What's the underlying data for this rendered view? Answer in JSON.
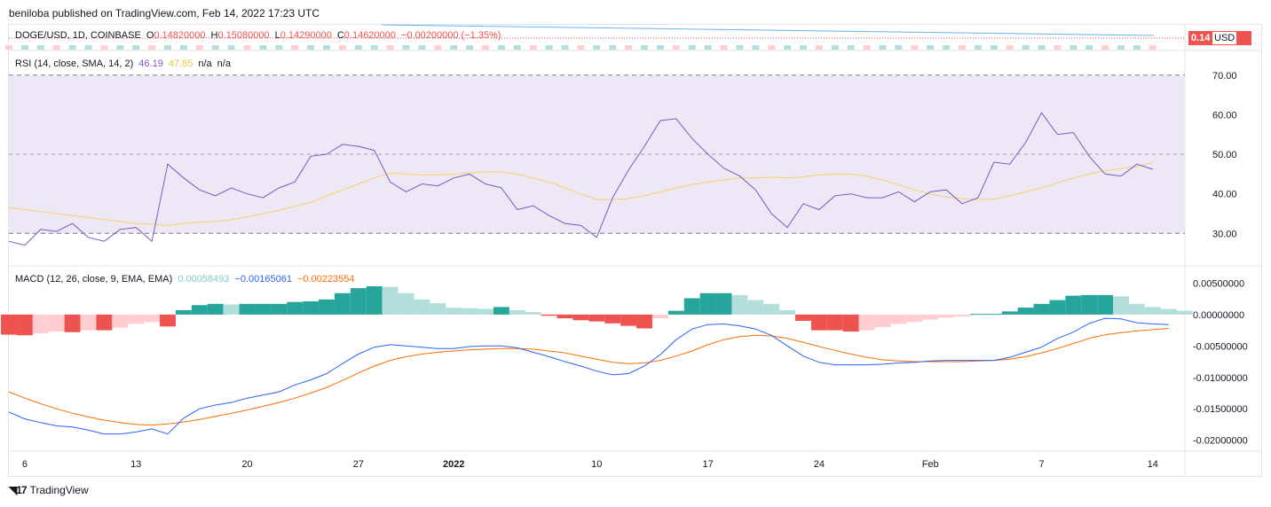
{
  "header": {
    "published_text": "beniloba published on TradingView.com, Feb 14, 2022 17:23 UTC"
  },
  "footer": {
    "brand": "TradingView",
    "logo": "tradingview-logo-icon"
  },
  "main_pane": {
    "symbol": "DOGE/USD, 1D, COINBASE",
    "open_label": "O",
    "open": "0.14820000",
    "high_label": "H",
    "high": "0.15080000",
    "low_label": "L",
    "low": "0.14290000",
    "close_label": "C",
    "close": "0.14620000",
    "change": "−0.00200000 (−1.35%)",
    "last_price_badge": "0.14",
    "currency": "USD"
  },
  "rsi_pane": {
    "title": "RSI (14, close, SMA, 14, 2)",
    "rsi_value": "46.19",
    "sma_value": "47.85",
    "na1": "n/a",
    "na2": "n/a"
  },
  "macd_pane": {
    "title": "MACD (12, 26, close, 9, EMA, EMA)",
    "hist_value": "0.00058493",
    "macd_value": "−0.00165061",
    "signal_value": "−0.00223554"
  },
  "colors": {
    "up": "#26a69a",
    "down": "#ef5350",
    "up_light": "#b2dfdb",
    "down_light": "#ffcdd2",
    "rsi_line": "#7e57c2",
    "rsi_sma": "#f5d36a",
    "rsi_band": "#ede7f6",
    "macd_line": "#2962ff",
    "signal_line": "#ff6d00",
    "trendline": "#64b5f6"
  },
  "chart_data": [
    {
      "type": "line",
      "title": "RSI (14, close, SMA, 14, 2)",
      "x_tick_labels": [
        "6",
        "13",
        "20",
        "27",
        "2022",
        "10",
        "17",
        "24",
        "Feb",
        "7",
        "14"
      ],
      "y_ticks": [
        "30.00",
        "40.00",
        "50.00",
        "60.00",
        "70.00"
      ],
      "ylim": [
        22,
        76
      ],
      "band": [
        30,
        70
      ],
      "midline": 50,
      "series": [
        {
          "name": "RSI",
          "values": [
            28,
            27,
            31,
            30.5,
            32.5,
            29,
            28,
            31,
            31.5,
            28,
            47.5,
            44,
            41,
            39.5,
            41.5,
            40,
            39,
            41.5,
            43,
            49.5,
            50,
            52.5,
            52,
            51,
            43,
            40.5,
            42.5,
            42,
            44,
            45,
            42.5,
            41.5,
            36,
            37,
            34.5,
            32.5,
            32,
            29,
            39,
            46,
            52,
            58.5,
            59,
            54,
            50,
            46.5,
            44.5,
            41,
            35,
            31.5,
            37.5,
            36,
            39.5,
            40,
            39,
            39,
            40.5,
            38,
            40.5,
            41,
            37.5,
            39,
            48,
            47.5,
            53,
            60.5,
            55,
            55.5,
            49.5,
            45,
            44.5,
            47.5,
            46.2
          ]
        },
        {
          "name": "RSI-based MA",
          "values": [
            36.5,
            36,
            35.5,
            35,
            34.5,
            34,
            33.5,
            33,
            32.5,
            32.3,
            32,
            32.5,
            32.8,
            33,
            33.5,
            34.2,
            35,
            35.8,
            36.8,
            37.8,
            39.5,
            41,
            42.5,
            44,
            45.2,
            45,
            44.8,
            44.8,
            45,
            45.3,
            45.6,
            45.5,
            45,
            44,
            43,
            41.5,
            40,
            38.6,
            38.5,
            38.8,
            39.5,
            40.5,
            41.5,
            42.3,
            43,
            43.5,
            44,
            44,
            44.2,
            44,
            44.3,
            44.8,
            45,
            45,
            44.5,
            43.5,
            42.3,
            41,
            40,
            39.2,
            38.8,
            38.5,
            38.7,
            39.5,
            40.5,
            41.5,
            42.8,
            44,
            45,
            45.8,
            46.4,
            46.9,
            47.85
          ]
        }
      ]
    },
    {
      "type": "bar",
      "title": "MACD (12, 26, close, 9, EMA, EMA)",
      "x_tick_labels": [
        "6",
        "13",
        "20",
        "27",
        "2022",
        "10",
        "17",
        "24",
        "Feb",
        "7",
        "14"
      ],
      "y_ticks": [
        "0.00500000",
        "0.00000000",
        "-0.00500000",
        "-0.01000000",
        "-0.01500000",
        "-0.02000000"
      ],
      "ylim": [
        -0.0216,
        0.0076
      ],
      "series": [
        {
          "name": "Histogram",
          "values": [
            -0.0032,
            -0.0033,
            -0.003,
            -0.0027,
            -0.0028,
            -0.0025,
            -0.0025,
            -0.0021,
            -0.0015,
            -0.0012,
            -0.0019,
            0.0007,
            0.0015,
            0.0017,
            0.0016,
            0.0017,
            0.0017,
            0.0017,
            0.002,
            0.0021,
            0.0024,
            0.0034,
            0.0042,
            0.0045,
            0.0044,
            0.0034,
            0.0024,
            0.0018,
            0.0011,
            0.001,
            0.0009,
            0.0012,
            0.0007,
            0.0004,
            -0.0002,
            -0.0006,
            -0.0009,
            -0.0011,
            -0.0014,
            -0.0018,
            -0.0022,
            -0.0006,
            0.0006,
            0.0026,
            0.0034,
            0.0034,
            0.0031,
            0.0023,
            0.0017,
            0.0007,
            -0.001,
            -0.0025,
            -0.0025,
            -0.0027,
            -0.0025,
            -0.002,
            -0.0015,
            -0.0012,
            -0.0008,
            -0.0005,
            -0.0003,
            0.0001,
            0.0001,
            0.0005,
            0.0011,
            0.0017,
            0.0023,
            0.003,
            0.0031,
            0.0031,
            0.0029,
            0.0017,
            0.0012,
            0.0009,
            0.0006
          ]
        },
        {
          "name": "MACD",
          "values": [
            -0.0155,
            -0.0166,
            -0.0172,
            -0.0177,
            -0.0179,
            -0.0184,
            -0.019,
            -0.019,
            -0.0187,
            -0.0182,
            -0.019,
            -0.0165,
            -0.015,
            -0.0144,
            -0.014,
            -0.0133,
            -0.0128,
            -0.0123,
            -0.0112,
            -0.0104,
            -0.0094,
            -0.0078,
            -0.0063,
            -0.0052,
            -0.0048,
            -0.005,
            -0.0052,
            -0.0054,
            -0.0054,
            -0.0051,
            -0.005,
            -0.005,
            -0.0053,
            -0.006,
            -0.0067,
            -0.0075,
            -0.0082,
            -0.009,
            -0.0096,
            -0.0094,
            -0.0082,
            -0.0064,
            -0.004,
            -0.0023,
            -0.0016,
            -0.0015,
            -0.0018,
            -0.0023,
            -0.0033,
            -0.005,
            -0.0066,
            -0.0076,
            -0.008,
            -0.008,
            -0.008,
            -0.0079,
            -0.0077,
            -0.0076,
            -0.0074,
            -0.0073,
            -0.0073,
            -0.0073,
            -0.0073,
            -0.0068,
            -0.006,
            -0.0052,
            -0.0038,
            -0.0028,
            -0.0014,
            -0.0006,
            -0.0007,
            -0.0013,
            -0.0015,
            -0.0016
          ]
        },
        {
          "name": "Signal",
          "values": [
            -0.0123,
            -0.0133,
            -0.0142,
            -0.015,
            -0.0157,
            -0.0163,
            -0.0168,
            -0.0172,
            -0.0175,
            -0.0176,
            -0.0174,
            -0.0171,
            -0.0167,
            -0.0162,
            -0.0157,
            -0.0152,
            -0.0146,
            -0.014,
            -0.0133,
            -0.0125,
            -0.0116,
            -0.0105,
            -0.0093,
            -0.0082,
            -0.0073,
            -0.0067,
            -0.0063,
            -0.006,
            -0.0058,
            -0.0056,
            -0.0055,
            -0.0054,
            -0.0054,
            -0.0055,
            -0.0058,
            -0.0061,
            -0.0066,
            -0.0071,
            -0.0076,
            -0.0078,
            -0.0077,
            -0.0073,
            -0.0066,
            -0.0058,
            -0.0048,
            -0.004,
            -0.0035,
            -0.0033,
            -0.0034,
            -0.0038,
            -0.0044,
            -0.0051,
            -0.0057,
            -0.0063,
            -0.0068,
            -0.0072,
            -0.0074,
            -0.0075,
            -0.0075,
            -0.0075,
            -0.0075,
            -0.0074,
            -0.0073,
            -0.0071,
            -0.0067,
            -0.0061,
            -0.0054,
            -0.0046,
            -0.0038,
            -0.0032,
            -0.0029,
            -0.0026,
            -0.0024,
            -0.0022
          ]
        }
      ]
    }
  ]
}
